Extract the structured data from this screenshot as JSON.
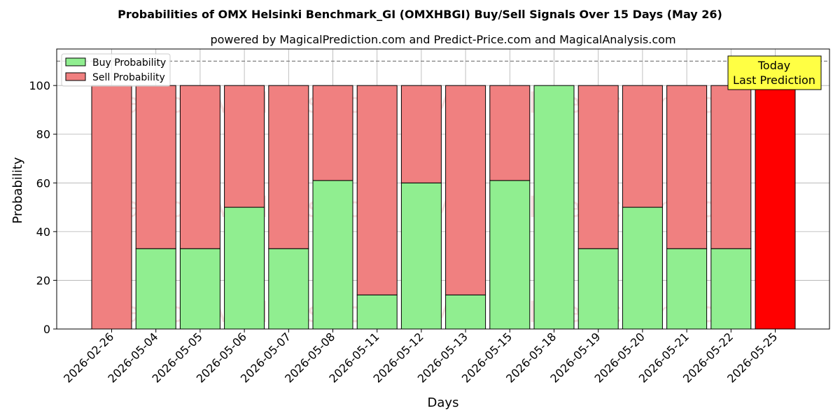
{
  "chart_data": {
    "type": "bar",
    "stacked": true,
    "title": "Probabilities of OMX Helsinki Benchmark_GI (OMXHBGI) Buy/Sell Signals Over 15 Days (May 26)",
    "subtitle": "powered by MagicalPrediction.com and Predict-Price.com and MagicalAnalysis.com",
    "xlabel": "Days",
    "ylabel": "Probability",
    "ylim": [
      0,
      115
    ],
    "yticks": [
      0,
      20,
      40,
      60,
      80,
      100
    ],
    "grid": true,
    "legend_position": "top-left",
    "reference_line": 110,
    "categories": [
      "2026-02-26",
      "2026-05-04",
      "2026-05-05",
      "2026-05-06",
      "2026-05-07",
      "2026-05-08",
      "2026-05-11",
      "2026-05-12",
      "2026-05-13",
      "2026-05-15",
      "2026-05-18",
      "2026-05-19",
      "2026-05-20",
      "2026-05-21",
      "2026-05-22",
      "2026-05-25"
    ],
    "series": [
      {
        "name": "Buy Probability",
        "color": "#90ee90",
        "values": [
          0,
          33,
          33,
          50,
          33,
          61,
          14,
          60,
          14,
          61,
          100,
          33,
          50,
          33,
          33,
          0
        ]
      },
      {
        "name": "Sell Probability",
        "color": "#f08080",
        "values": [
          100,
          67,
          67,
          50,
          67,
          39,
          86,
          40,
          86,
          39,
          0,
          67,
          50,
          67,
          67,
          100
        ]
      }
    ],
    "highlight": {
      "index": 15,
      "color": "#ff0000"
    },
    "annotation": {
      "line1": "Today",
      "line2": "Last Prediction",
      "background": "#ffff44"
    },
    "watermarks": [
      "MagicalAnalysis.com",
      "MagicalPrediction.com"
    ]
  }
}
